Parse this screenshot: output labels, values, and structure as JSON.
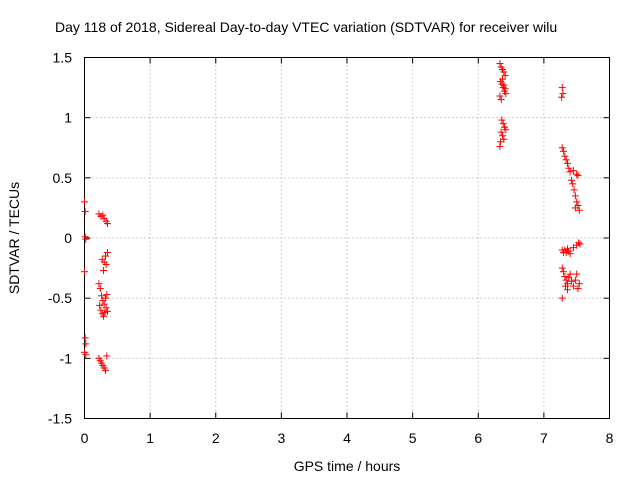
{
  "chart_data": {
    "type": "scatter",
    "title": "Day 118 of 2018, Sidereal Day-to-day VTEC variation (SDTVAR) for receiver wilu",
    "xlabel": "GPS time / hours",
    "ylabel": "SDTVAR / TECUs",
    "xlim": [
      0,
      8
    ],
    "ylim": [
      -1.5,
      1.5
    ],
    "xticks": [
      0,
      1,
      2,
      3,
      4,
      5,
      6,
      7,
      8
    ],
    "xtick_labels": [
      "0",
      "1",
      "2",
      "3",
      "4",
      "5",
      "6",
      "7",
      "8"
    ],
    "yticks": [
      -1.5,
      -1,
      -0.5,
      0,
      0.5,
      1,
      1.5
    ],
    "ytick_labels": [
      "-1.5",
      "-1",
      "-0.5",
      "0",
      "0.5",
      "1",
      "1.5"
    ],
    "grid": true,
    "marker": "+",
    "color": "#ff0000",
    "series": [
      {
        "name": "SDTVAR",
        "points": [
          [
            0.0,
            0.3
          ],
          [
            0.01,
            0.22
          ],
          [
            0.01,
            0.01
          ],
          [
            0.02,
            -0.01
          ],
          [
            0.0,
            -0.28
          ],
          [
            0.01,
            -0.83
          ],
          [
            0.02,
            -0.88
          ],
          [
            0.0,
            -0.95
          ],
          [
            0.02,
            -0.97
          ],
          [
            0.22,
            0.2
          ],
          [
            0.25,
            0.18
          ],
          [
            0.28,
            0.19
          ],
          [
            0.3,
            0.16
          ],
          [
            0.33,
            0.14
          ],
          [
            0.35,
            0.12
          ],
          [
            0.27,
            -0.18
          ],
          [
            0.3,
            -0.2
          ],
          [
            0.33,
            -0.22
          ],
          [
            0.35,
            -0.12
          ],
          [
            0.32,
            -0.15
          ],
          [
            0.29,
            -0.27
          ],
          [
            0.22,
            -0.38
          ],
          [
            0.24,
            -0.42
          ],
          [
            0.26,
            -0.48
          ],
          [
            0.28,
            -0.52
          ],
          [
            0.3,
            -0.55
          ],
          [
            0.32,
            -0.5
          ],
          [
            0.34,
            -0.47
          ],
          [
            0.23,
            -0.56
          ],
          [
            0.25,
            -0.6
          ],
          [
            0.27,
            -0.63
          ],
          [
            0.29,
            -0.65
          ],
          [
            0.31,
            -0.62
          ],
          [
            0.33,
            -0.58
          ],
          [
            0.35,
            -0.61
          ],
          [
            0.24,
            -1.02
          ],
          [
            0.26,
            -1.04
          ],
          [
            0.28,
            -1.06
          ],
          [
            0.3,
            -1.08
          ],
          [
            0.32,
            -1.1
          ],
          [
            0.34,
            -0.98
          ],
          [
            0.22,
            -1.0
          ],
          [
            6.33,
            1.45
          ],
          [
            6.35,
            1.42
          ],
          [
            6.37,
            1.4
          ],
          [
            6.39,
            1.38
          ],
          [
            6.41,
            1.35
          ],
          [
            6.34,
            1.3
          ],
          [
            6.36,
            1.28
          ],
          [
            6.38,
            1.25
          ],
          [
            6.4,
            1.22
          ],
          [
            6.42,
            1.2
          ],
          [
            6.33,
            1.18
          ],
          [
            6.35,
            1.15
          ],
          [
            6.37,
            1.32
          ],
          [
            6.39,
            1.27
          ],
          [
            6.41,
            1.24
          ],
          [
            6.36,
            0.98
          ],
          [
            6.38,
            0.95
          ],
          [
            6.4,
            0.92
          ],
          [
            6.42,
            0.9
          ],
          [
            6.35,
            0.88
          ],
          [
            6.37,
            0.85
          ],
          [
            6.39,
            0.82
          ],
          [
            6.34,
            0.8
          ],
          [
            6.33,
            0.76
          ],
          [
            7.28,
            1.25
          ],
          [
            7.29,
            1.2
          ],
          [
            7.27,
            1.17
          ],
          [
            7.28,
            0.75
          ],
          [
            7.3,
            0.72
          ],
          [
            7.32,
            0.68
          ],
          [
            7.34,
            0.65
          ],
          [
            7.36,
            0.62
          ],
          [
            7.38,
            0.58
          ],
          [
            7.4,
            0.55
          ],
          [
            7.45,
            0.56
          ],
          [
            7.5,
            0.53
          ],
          [
            7.52,
            0.52
          ],
          [
            7.42,
            0.48
          ],
          [
            7.44,
            0.45
          ],
          [
            7.46,
            0.4
          ],
          [
            7.48,
            0.35
          ],
          [
            7.5,
            0.3
          ],
          [
            7.52,
            0.27
          ],
          [
            7.54,
            0.23
          ],
          [
            7.48,
            0.25
          ],
          [
            7.28,
            -0.1
          ],
          [
            7.3,
            -0.12
          ],
          [
            7.32,
            -0.1
          ],
          [
            7.34,
            -0.12
          ],
          [
            7.36,
            -0.09
          ],
          [
            7.38,
            -0.11
          ],
          [
            7.4,
            -0.13
          ],
          [
            7.45,
            -0.08
          ],
          [
            7.5,
            -0.06
          ],
          [
            7.53,
            -0.04
          ],
          [
            7.55,
            -0.05
          ],
          [
            7.28,
            -0.25
          ],
          [
            7.3,
            -0.28
          ],
          [
            7.32,
            -0.32
          ],
          [
            7.34,
            -0.35
          ],
          [
            7.36,
            -0.38
          ],
          [
            7.38,
            -0.33
          ],
          [
            7.4,
            -0.3
          ],
          [
            7.42,
            -0.36
          ],
          [
            7.45,
            -0.4
          ],
          [
            7.48,
            -0.35
          ],
          [
            7.5,
            -0.3
          ],
          [
            7.52,
            -0.42
          ],
          [
            7.54,
            -0.38
          ],
          [
            7.36,
            -0.43
          ],
          [
            7.33,
            -0.4
          ],
          [
            7.28,
            -0.5
          ]
        ]
      }
    ]
  }
}
